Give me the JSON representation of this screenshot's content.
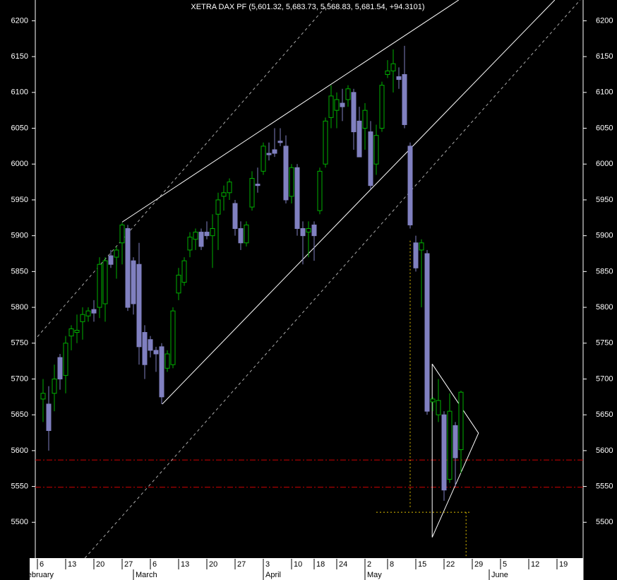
{
  "chart_data": {
    "type": "candlestick",
    "title": "XETRA DAX PF (5,601.32, 5,683.73, 5,568.83, 5,681.54, +94.3101)",
    "up_color": "#00b000",
    "down_color": "#8080c0",
    "xlim": [
      -0.375,
      96.625
    ],
    "ylim": [
      5450,
      6229
    ],
    "yticks": [
      5500,
      5550,
      5600,
      5650,
      5700,
      5750,
      5800,
      5850,
      5900,
      5950,
      6000,
      6050,
      6100,
      6150,
      6200
    ],
    "xticks": [
      {
        "value": 0,
        "label": "6"
      },
      {
        "value": 5,
        "label": "13"
      },
      {
        "value": 10,
        "label": "20"
      },
      {
        "value": 15,
        "label": "27"
      },
      {
        "value": 20,
        "label": "6"
      },
      {
        "value": 25,
        "label": "13"
      },
      {
        "value": 30,
        "label": "20"
      },
      {
        "value": 35,
        "label": "27"
      },
      {
        "value": 40,
        "label": "3"
      },
      {
        "value": 45,
        "label": "10"
      },
      {
        "value": 49,
        "label": "18"
      },
      {
        "value": 53,
        "label": "24"
      },
      {
        "value": 58,
        "label": "2"
      },
      {
        "value": 62,
        "label": "8"
      },
      {
        "value": 67,
        "label": "15"
      },
      {
        "value": 72,
        "label": "22"
      },
      {
        "value": 77,
        "label": "29"
      },
      {
        "value": 82,
        "label": "5"
      },
      {
        "value": 87,
        "label": "12"
      },
      {
        "value": 92,
        "label": "19"
      }
    ],
    "month_ticks": [
      {
        "value": -3,
        "label": "February"
      },
      {
        "value": 17,
        "label": "March"
      },
      {
        "value": 40,
        "label": "April"
      },
      {
        "value": 58,
        "label": "May"
      },
      {
        "value": 80,
        "label": "June"
      }
    ],
    "x": [
      1,
      2,
      3,
      4,
      5,
      6,
      7,
      8,
      9,
      10,
      11,
      12,
      13,
      14,
      15,
      16,
      17,
      18,
      19,
      20,
      21,
      22,
      23,
      24,
      25,
      26,
      27,
      28,
      29,
      30,
      31,
      32,
      33,
      34,
      35,
      36,
      37,
      38,
      39,
      40,
      41,
      42,
      43,
      44,
      45,
      46,
      47,
      48,
      49,
      50,
      51,
      52,
      53,
      54,
      55,
      56,
      57,
      58,
      59,
      60,
      61,
      62,
      63,
      64,
      65,
      66,
      67,
      68,
      69,
      70,
      71,
      72,
      73,
      74,
      75
    ],
    "open": [
      5672,
      5665,
      5680,
      5730,
      5705,
      5760,
      5765,
      5780,
      5788,
      5797,
      5800,
      5805,
      5872,
      5870,
      5890,
      5910,
      5865,
      5860,
      5765,
      5755,
      5740,
      5745,
      5715,
      5720,
      5820,
      5835,
      5880,
      5895,
      5905,
      5905,
      5900,
      5930,
      5955,
      5960,
      5945,
      5910,
      5890,
      5940,
      5972,
      5990,
      6015,
      6020,
      6032,
      6025,
      5955,
      5995,
      5910,
      5905,
      5915,
      5935,
      6000,
      6065,
      6075,
      6085,
      6090,
      6100,
      6060,
      6050,
      6045,
      6000,
      6050,
      6125,
      6130,
      6122,
      6125,
      6025,
      5890,
      5880,
      5875,
      5668,
      5650,
      5650,
      5560,
      5635,
      5601.32
    ],
    "high": [
      5700,
      5690,
      5720,
      5735,
      5760,
      5775,
      5790,
      5800,
      5800,
      5810,
      5870,
      5870,
      5880,
      5885,
      5918,
      5915,
      5870,
      5890,
      5775,
      5760,
      5745,
      5750,
      5740,
      5800,
      5855,
      5870,
      5905,
      5910,
      5910,
      5920,
      5930,
      5960,
      5970,
      5980,
      5950,
      5920,
      5920,
      5990,
      5995,
      6030,
      6030,
      6050,
      6050,
      6040,
      6000,
      6000,
      5920,
      5920,
      5920,
      5995,
      6065,
      6110,
      6100,
      6105,
      6110,
      6105,
      6080,
      6085,
      6060,
      6055,
      6115,
      6145,
      6160,
      6135,
      6165,
      6030,
      5900,
      5895,
      5880,
      5675,
      5700,
      5655,
      5680,
      5640,
      5683.73
    ],
    "low": [
      5640,
      5600,
      5655,
      5685,
      5680,
      5740,
      5750,
      5755,
      5780,
      5780,
      5785,
      5780,
      5855,
      5840,
      5860,
      5795,
      5790,
      5720,
      5700,
      5730,
      5710,
      5665,
      5710,
      5715,
      5810,
      5830,
      5870,
      5880,
      5880,
      5895,
      5855,
      5880,
      5935,
      5950,
      5900,
      5880,
      5885,
      5935,
      5960,
      5985,
      6005,
      6010,
      6025,
      5945,
      5945,
      5900,
      5860,
      5870,
      5865,
      5930,
      5995,
      6050,
      6050,
      6060,
      6080,
      6020,
      6010,
      6020,
      5965,
      5985,
      6045,
      6120,
      6100,
      6105,
      6050,
      5910,
      5850,
      5800,
      5650,
      5655,
      5640,
      5530,
      5555,
      5550,
      5568.83
    ],
    "close": [
      5680,
      5628,
      5700,
      5700,
      5750,
      5770,
      5768,
      5790,
      5795,
      5792,
      5860,
      5865,
      5860,
      5880,
      5915,
      5800,
      5805,
      5745,
      5720,
      5740,
      5735,
      5675,
      5735,
      5795,
      5845,
      5865,
      5898,
      5905,
      5885,
      5900,
      5910,
      5950,
      5960,
      5975,
      5910,
      5890,
      5915,
      5980,
      5970,
      6025,
      6013,
      6015,
      6030,
      5950,
      5995,
      5910,
      5900,
      5910,
      5900,
      5990,
      6060,
      6095,
      6090,
      6080,
      6105,
      6045,
      6010,
      6075,
      5970,
      6040,
      6110,
      6130,
      6140,
      6118,
      6055,
      5915,
      5855,
      5890,
      5655,
      5672,
      5670,
      5545,
      5655,
      5590,
      5681.54
    ],
    "hlines": [
      {
        "value": 5587,
        "color": "#cc0000",
        "style": "dashdot"
      },
      {
        "value": 5549,
        "color": "#cc0000",
        "style": "dashdot"
      }
    ],
    "lines": [
      {
        "points": [
          [
            15,
            5919
          ],
          [
            74.6,
            6229
          ]
        ],
        "color": "#ffffff",
        "style": "solid"
      },
      {
        "points": [
          [
            22.1,
            5665
          ],
          [
            91.6,
            6229
          ]
        ],
        "color": "#ffffff",
        "style": "solid"
      },
      {
        "points": [
          [
            0,
            5759
          ],
          [
            52.1,
            6229
          ]
        ],
        "color": "#aaaaaa",
        "style": "dashed"
      },
      {
        "points": [
          [
            8.4,
            5450
          ],
          [
            96.1,
            6229
          ]
        ],
        "color": "#aaaaaa",
        "style": "dashed"
      },
      {
        "points": [
          [
            69.9,
            5721
          ],
          [
            78.1,
            5624.5
          ],
          [
            69.9,
            5479
          ],
          [
            69.9,
            5721
          ]
        ],
        "color": "#ffffff",
        "style": "solid"
      },
      {
        "points": [
          [
            66,
            5893
          ],
          [
            66,
            5519
          ]
        ],
        "color": "#e0c000",
        "style": "dotted"
      },
      {
        "points": [
          [
            60,
            5514
          ],
          [
            76.75,
            5514
          ]
        ],
        "color": "#e0c000",
        "style": "dotted"
      },
      {
        "points": [
          [
            75.9,
            5514
          ],
          [
            75.9,
            5450
          ]
        ],
        "color": "#e0c000",
        "style": "dotted"
      }
    ]
  }
}
